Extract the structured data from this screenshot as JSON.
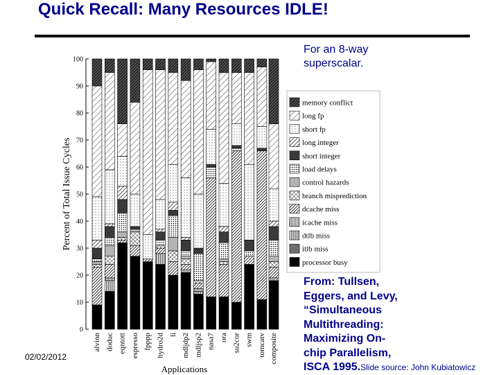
{
  "slide": {
    "title": "Quick Recall: Many Resources IDLE!",
    "note_top": "For an 8-way\nsuperscalar.",
    "reference": "From: Tullsen,\nEggers, and Levy,\n“Simultaneous\nMultithreading:\nMaximizing On-\nchip Parallelism,\nISCA 1995.",
    "source": "Slide source: John Kubiatowicz",
    "date": "02/02/2012"
  },
  "chart_data": {
    "type": "bar",
    "stacked": true,
    "xlabel": "Applications",
    "ylabel": "Percent of Total Issue Cycles",
    "ylim": [
      0,
      100
    ],
    "yticks": [
      0,
      10,
      20,
      30,
      40,
      50,
      60,
      70,
      80,
      90,
      100
    ],
    "grid": false,
    "legend_position": "right",
    "categories": [
      "alvinn",
      "doduc",
      "eqntott",
      "espresso",
      "fpppp",
      "hydro2d",
      "li",
      "mdljdp2",
      "mdljsp2",
      "nasa7",
      "ora",
      "su2cor",
      "swm",
      "tomcatv",
      "composite"
    ],
    "series": [
      {
        "name": "processor busy",
        "pattern": "solid-black",
        "color": "#000000",
        "values": [
          9,
          14,
          32,
          27,
          25,
          24,
          20,
          21,
          13,
          12,
          12,
          10,
          24,
          11,
          18
        ]
      },
      {
        "name": "itlb miss",
        "pattern": "solid-gray",
        "color": "#6e6e6e",
        "values": [
          0,
          0,
          0,
          0,
          0,
          0,
          0,
          0,
          0,
          0,
          0,
          0,
          0,
          0,
          0
        ]
      },
      {
        "name": "dtlb miss",
        "pattern": "vertical-lines",
        "color": "#000000",
        "values": [
          0,
          4,
          0,
          0,
          0,
          4,
          0,
          0,
          1,
          0,
          0,
          0,
          0,
          0,
          0
        ]
      },
      {
        "name": "icache miss",
        "pattern": "vertical-lines-fine",
        "color": "#000000",
        "values": [
          0,
          1,
          0,
          0,
          0,
          0,
          0,
          1,
          1,
          0,
          0,
          0,
          0,
          0,
          1
        ]
      },
      {
        "name": "dcache miss",
        "pattern": "diag-dense",
        "color": "#000000",
        "values": [
          14,
          5,
          1,
          4,
          1,
          2,
          5,
          2,
          2,
          44,
          12,
          56,
          3,
          55,
          4
        ]
      },
      {
        "name": "branch misprediction",
        "pattern": "crosshatch",
        "color": "#000000",
        "values": [
          1,
          3,
          1,
          5,
          0,
          1,
          4,
          2,
          1,
          0,
          1,
          0,
          0,
          0,
          2
        ]
      },
      {
        "name": "control hazards",
        "pattern": "solid-lightgray",
        "color": "#b4b4b4",
        "values": [
          1,
          4,
          2,
          1,
          0,
          0,
          5,
          1,
          0,
          0,
          1,
          0,
          0,
          0,
          2
        ]
      },
      {
        "name": "load delays",
        "pattern": "dots-dense",
        "color": "#000000",
        "values": [
          1,
          3,
          7,
          0,
          0,
          2,
          8,
          2,
          10,
          4,
          6,
          1,
          2,
          0,
          6
        ]
      },
      {
        "name": "short integer",
        "pattern": "solid-dark",
        "color": "#3a3a3a",
        "values": [
          4,
          4,
          5,
          1,
          0,
          3,
          2,
          4,
          2,
          1,
          4,
          1,
          4,
          1,
          5
        ]
      },
      {
        "name": "long integer",
        "pattern": "diag-medium",
        "color": "#000000",
        "values": [
          3,
          1,
          5,
          0,
          0,
          1,
          3,
          1,
          0,
          0,
          2,
          0,
          0,
          0,
          2
        ]
      },
      {
        "name": "short fp",
        "pattern": "dots-sparse",
        "color": "#000000",
        "values": [
          16,
          20,
          11,
          12,
          9,
          11,
          14,
          22,
          20,
          13,
          16,
          8,
          28,
          8,
          12
        ]
      },
      {
        "name": "long fp",
        "pattern": "diag-light",
        "color": "#000000",
        "values": [
          41,
          36,
          12,
          34,
          61,
          48,
          34,
          36,
          46,
          25,
          41,
          19,
          34,
          22,
          24
        ]
      },
      {
        "name": "memory conflict",
        "pattern": "diag-dense-dark",
        "color": "#000000",
        "values": [
          10,
          5,
          24,
          16,
          4,
          4,
          5,
          8,
          4,
          1,
          5,
          5,
          5,
          3,
          24
        ]
      }
    ]
  }
}
